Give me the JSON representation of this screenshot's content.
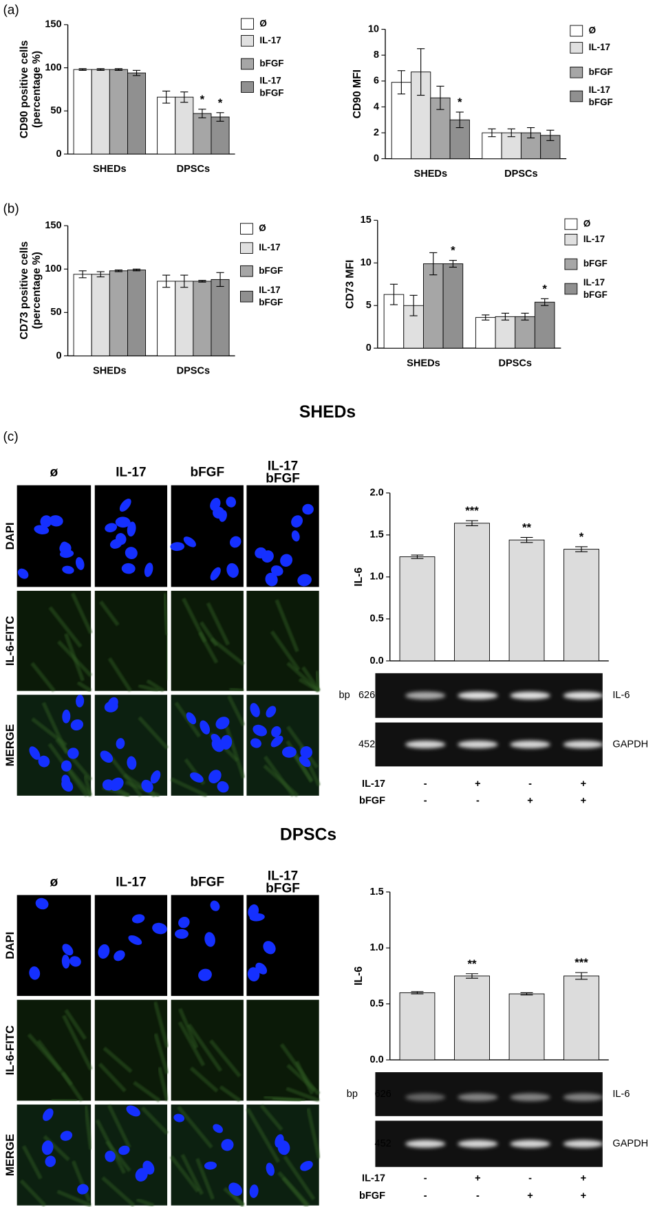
{
  "panel_labels": [
    "(a)",
    "(b)",
    "(c)"
  ],
  "chart_data": [
    {
      "type": "bar",
      "y_label": "CD90 positive cells\n(percentage %)",
      "categories": [
        "SHEDs",
        "DPSCs"
      ],
      "ylim": [
        0,
        150
      ],
      "yticks": [
        0,
        50,
        100,
        150
      ],
      "series": [
        {
          "name": "Ø",
          "color": "#ffffff",
          "values": [
            98,
            66
          ],
          "errors": [
            1,
            7
          ],
          "annotations": [
            null,
            null
          ]
        },
        {
          "name": "IL-17",
          "color": "#e0e0e0",
          "values": [
            98,
            66
          ],
          "errors": [
            1,
            6
          ],
          "annotations": [
            null,
            null
          ]
        },
        {
          "name": "bFGF",
          "color": "#a6a6a6",
          "values": [
            98,
            47
          ],
          "errors": [
            1,
            5
          ],
          "annotations": [
            null,
            "*"
          ]
        },
        {
          "name": "IL-17\nbFGF",
          "color": "#909090",
          "values": [
            94,
            43
          ],
          "errors": [
            3,
            5
          ],
          "annotations": [
            null,
            "*"
          ]
        }
      ]
    },
    {
      "type": "bar",
      "y_label": "CD90 MFI",
      "categories": [
        "SHEDs",
        "DPSCs"
      ],
      "ylim": [
        0,
        10
      ],
      "yticks": [
        0,
        2,
        4,
        6,
        8,
        10
      ],
      "series": [
        {
          "name": "Ø",
          "color": "#ffffff",
          "values": [
            5.9,
            2.0
          ],
          "errors": [
            0.9,
            0.3
          ],
          "annotations": [
            null,
            null
          ]
        },
        {
          "name": "IL-17",
          "color": "#e0e0e0",
          "values": [
            6.7,
            2.0
          ],
          "errors": [
            1.8,
            0.3
          ],
          "annotations": [
            null,
            null
          ]
        },
        {
          "name": "bFGF",
          "color": "#a6a6a6",
          "values": [
            4.7,
            2.0
          ],
          "errors": [
            0.9,
            0.4
          ],
          "annotations": [
            null,
            null
          ]
        },
        {
          "name": "IL-17\nbFGF",
          "color": "#909090",
          "values": [
            3.0,
            1.8
          ],
          "errors": [
            0.6,
            0.4
          ],
          "annotations": [
            "*",
            null
          ]
        }
      ]
    },
    {
      "type": "bar",
      "y_label": "CD73 positive cells\n(percentage %)",
      "categories": [
        "SHEDs",
        "DPSCs"
      ],
      "ylim": [
        0,
        150
      ],
      "yticks": [
        0,
        50,
        100,
        150
      ],
      "series": [
        {
          "name": "Ø",
          "color": "#ffffff",
          "values": [
            94,
            86
          ],
          "errors": [
            4,
            7
          ],
          "annotations": [
            null,
            null
          ]
        },
        {
          "name": "IL-17",
          "color": "#e0e0e0",
          "values": [
            94,
            86
          ],
          "errors": [
            3,
            7
          ],
          "annotations": [
            null,
            null
          ]
        },
        {
          "name": "bFGF",
          "color": "#a6a6a6",
          "values": [
            98,
            86
          ],
          "errors": [
            1,
            1
          ],
          "annotations": [
            null,
            null
          ]
        },
        {
          "name": "IL-17\nbFGF",
          "color": "#909090",
          "values": [
            99,
            88
          ],
          "errors": [
            1,
            8
          ],
          "annotations": [
            null,
            null
          ]
        }
      ]
    },
    {
      "type": "bar",
      "y_label": "CD73 MFI",
      "categories": [
        "SHEDs",
        "DPSCs"
      ],
      "ylim": [
        0,
        15
      ],
      "yticks": [
        0,
        5,
        10,
        15
      ],
      "series": [
        {
          "name": "Ø",
          "color": "#ffffff",
          "values": [
            6.3,
            3.6
          ],
          "errors": [
            1.2,
            0.3
          ],
          "annotations": [
            null,
            null
          ]
        },
        {
          "name": "IL-17",
          "color": "#e0e0e0",
          "values": [
            5.0,
            3.7
          ],
          "errors": [
            1.2,
            0.4
          ],
          "annotations": [
            null,
            null
          ]
        },
        {
          "name": "bFGF",
          "color": "#a6a6a6",
          "values": [
            9.9,
            3.7
          ],
          "errors": [
            1.3,
            0.4
          ],
          "annotations": [
            null,
            null
          ]
        },
        {
          "name": "IL-17\nbFGF",
          "color": "#909090",
          "values": [
            9.9,
            5.4
          ],
          "errors": [
            0.4,
            0.4
          ],
          "annotations": [
            "*",
            "*"
          ]
        }
      ]
    },
    {
      "type": "bar",
      "y_label": "IL-6",
      "color": "#dcdcdc",
      "values": [
        1.24,
        1.64,
        1.44,
        1.33
      ],
      "errors": [
        0.02,
        0.03,
        0.03,
        0.03
      ],
      "annotations": [
        null,
        "***",
        "**",
        "*"
      ],
      "ylim": [
        0,
        2
      ],
      "yticks": [
        {
          "value": 0,
          "label": "0.0"
        },
        0.5,
        {
          "value": 1,
          "label": "1.0"
        },
        1.5,
        {
          "value": 2,
          "label": "2.0"
        }
      ]
    },
    {
      "type": "bar",
      "y_label": "IL-6",
      "color": "#dcdcdc",
      "values": [
        0.6,
        0.75,
        0.59,
        0.75
      ],
      "errors": [
        0.01,
        0.02,
        0.01,
        0.03
      ],
      "annotations": [
        null,
        "**",
        null,
        "***"
      ],
      "ylim": [
        0,
        1.5
      ],
      "yticks": [
        {
          "value": 0,
          "label": "0.0"
        },
        0.5,
        {
          "value": 1,
          "label": "1.0"
        },
        1.5
      ]
    }
  ],
  "panels": [
    {
      "heading": "SHEDs",
      "columns": [
        "ø",
        "IL-17",
        "bFGF",
        "IL-17\nbFGF"
      ],
      "rows": [
        "DAPI",
        "IL-6-FITC",
        "MERGE"
      ],
      "gel": {
        "bp": "bp",
        "sizes": [
          "626",
          "452"
        ],
        "genes": [
          "IL-6",
          "GAPDH"
        ]
      },
      "conditions": [
        {
          "name": "IL-17",
          "signs": [
            "-",
            "+",
            "-",
            "+"
          ]
        },
        {
          "name": "bFGF",
          "signs": [
            "-",
            "-",
            "+",
            "+"
          ]
        }
      ]
    },
    {
      "heading": "DPSCs",
      "columns": [
        "ø",
        "IL-17",
        "bFGF",
        "IL-17\nbFGF"
      ],
      "rows": [
        "DAPI",
        "IL-6-FITC",
        "MERGE"
      ],
      "gel": {
        "bp": "bp",
        "sizes": [
          "626",
          "452"
        ],
        "genes": [
          "IL-6",
          "GAPDH"
        ]
      },
      "conditions": [
        {
          "name": "IL-17",
          "signs": [
            "-",
            "+",
            "-",
            "+"
          ]
        },
        {
          "name": "bFGF",
          "signs": [
            "-",
            "-",
            "+",
            "+"
          ]
        }
      ]
    }
  ]
}
